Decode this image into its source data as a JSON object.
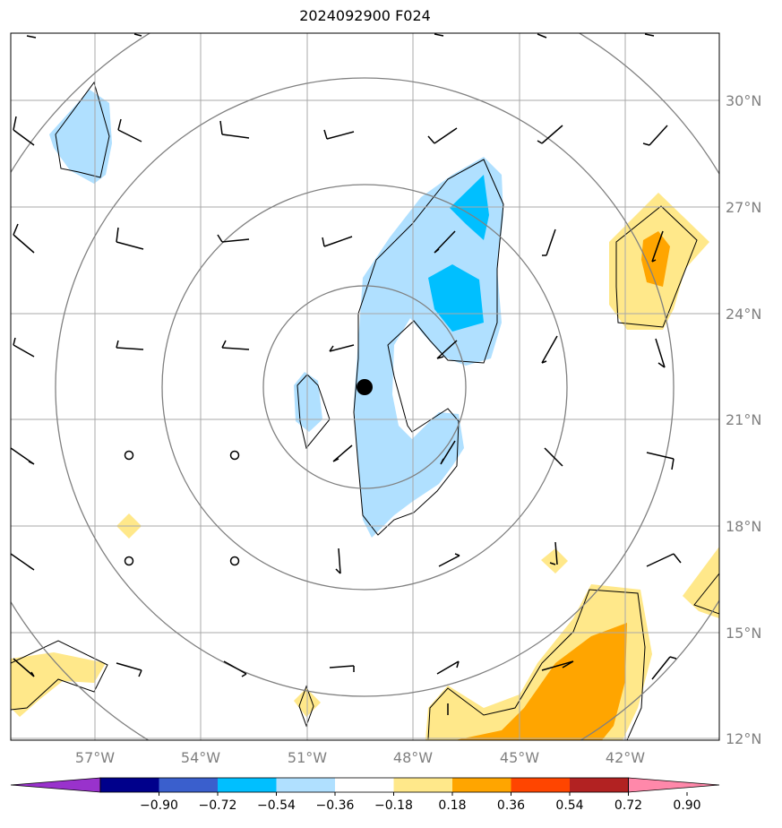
{
  "title": "2024092900 F024",
  "map": {
    "lon_range": [
      -59.5,
      -39.5
    ],
    "lat_range": [
      11.9,
      31.8
    ],
    "lon_ticks": [
      {
        "value": -57,
        "label": "57°W"
      },
      {
        "value": -54,
        "label": "54°W"
      },
      {
        "value": -51,
        "label": "51°W"
      },
      {
        "value": -48,
        "label": "48°W"
      },
      {
        "value": -45,
        "label": "45°W"
      },
      {
        "value": -42,
        "label": "42°W"
      }
    ],
    "lat_ticks": [
      {
        "value": 30,
        "label": "30°N"
      },
      {
        "value": 27,
        "label": "27°N"
      },
      {
        "value": 24,
        "label": "24°N"
      },
      {
        "value": 21,
        "label": "21°N"
      },
      {
        "value": 18,
        "label": "18°N"
      },
      {
        "value": 15,
        "label": "15°N"
      },
      {
        "value": 12,
        "label": "12°N"
      }
    ],
    "storm_center": {
      "lon": -49.6,
      "lat": 21.9
    },
    "range_rings_deg": [
      3,
      6,
      9,
      12
    ],
    "grid_color": "#a9a9a9",
    "ring_color": "#808080"
  },
  "colorbar": {
    "colors": [
      "#9932cc",
      "#00008b",
      "#3a5fcd",
      "#00bfff",
      "#b0e0ff",
      "#ffffff",
      "#ffe88a",
      "#ffa500",
      "#ff4500",
      "#b22222",
      "#ff88aa"
    ],
    "ticks": [
      "−0.90",
      "−0.72",
      "−0.54",
      "−0.36",
      "−0.18",
      "0.18",
      "0.36",
      "0.54",
      "0.72",
      "0.90"
    ]
  }
}
